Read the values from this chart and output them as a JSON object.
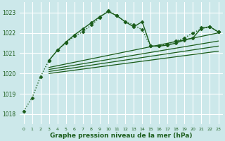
{
  "xlabel": "Graphe pression niveau de la mer (hPa)",
  "background_color": "#cce8ea",
  "grid_color": "#ffffff",
  "line_color": "#1a5c1a",
  "ylim": [
    1017.5,
    1023.5
  ],
  "xlim": [
    -0.5,
    23.5
  ],
  "yticks": [
    1018,
    1019,
    1020,
    1021,
    1022,
    1023
  ],
  "xticks": [
    0,
    1,
    2,
    3,
    4,
    5,
    6,
    7,
    8,
    9,
    10,
    11,
    12,
    13,
    14,
    15,
    16,
    17,
    18,
    19,
    20,
    21,
    22,
    23
  ],
  "series": [
    {
      "x": [
        0,
        1,
        2,
        3,
        4,
        5,
        6,
        7,
        8,
        9,
        10,
        11,
        12,
        13,
        14,
        15,
        16,
        17,
        18,
        19,
        20,
        21,
        22,
        23
      ],
      "y": [
        1018.15,
        1018.8,
        1019.85,
        1020.65,
        1021.15,
        1021.5,
        1021.85,
        1022.05,
        1022.4,
        1022.75,
        1023.1,
        1022.85,
        1022.55,
        1022.4,
        1022.15,
        1021.35,
        1021.35,
        1021.45,
        1021.6,
        1021.75,
        1022.0,
        1022.2,
        1022.3,
        1022.05
      ],
      "marker": "D",
      "markersize": 2.5,
      "linewidth": 1.0,
      "linestyle": ":"
    },
    {
      "x": [
        3,
        4,
        5,
        6,
        7,
        8,
        9,
        10,
        11,
        12,
        13,
        14,
        15,
        16,
        17,
        18,
        19,
        20,
        21,
        22,
        23
      ],
      "y": [
        1020.65,
        1021.15,
        1021.55,
        1021.9,
        1022.2,
        1022.5,
        1022.8,
        1023.05,
        1022.85,
        1022.55,
        1022.3,
        1022.55,
        1021.35,
        1021.35,
        1021.4,
        1021.5,
        1021.65,
        1021.75,
        1022.25,
        1022.3,
        1022.05
      ],
      "marker": "D",
      "markersize": 2.5,
      "linewidth": 1.0,
      "linestyle": "-"
    },
    {
      "x": [
        3,
        23
      ],
      "y": [
        1020.0,
        1021.1
      ],
      "marker": null,
      "markersize": 0,
      "linewidth": 0.9,
      "linestyle": "-"
    },
    {
      "x": [
        3,
        23
      ],
      "y": [
        1020.1,
        1021.35
      ],
      "marker": null,
      "markersize": 0,
      "linewidth": 0.9,
      "linestyle": "-"
    },
    {
      "x": [
        3,
        23
      ],
      "y": [
        1020.2,
        1021.6
      ],
      "marker": null,
      "markersize": 0,
      "linewidth": 0.9,
      "linestyle": "-"
    },
    {
      "x": [
        3,
        23
      ],
      "y": [
        1020.3,
        1022.0
      ],
      "marker": null,
      "markersize": 0,
      "linewidth": 0.9,
      "linestyle": "-"
    }
  ]
}
